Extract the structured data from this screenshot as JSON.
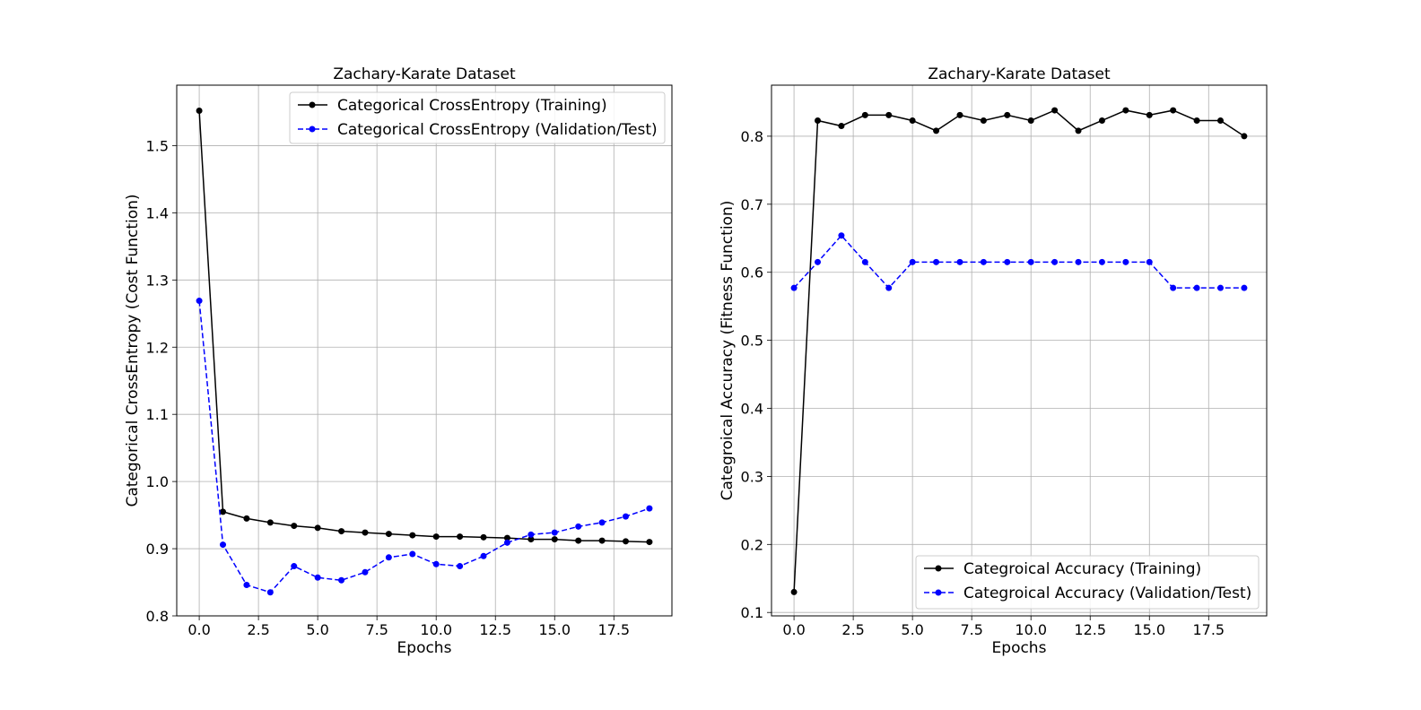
{
  "chart_data": [
    {
      "type": "line",
      "title": "Zachary-Karate Dataset",
      "xlabel": "Epochs",
      "ylabel": "Categorical CrossEntropy (Cost Function)",
      "xlim": [
        -0.95,
        19.95
      ],
      "ylim": [
        0.8,
        1.59
      ],
      "xticks": [
        0.0,
        2.5,
        5.0,
        7.5,
        10.0,
        12.5,
        15.0,
        17.5
      ],
      "xtick_labels": [
        "0.0",
        "2.5",
        "5.0",
        "7.5",
        "10.0",
        "12.5",
        "15.0",
        "17.5"
      ],
      "yticks": [
        0.8,
        0.9,
        1.0,
        1.1,
        1.2,
        1.3,
        1.4,
        1.5
      ],
      "ytick_labels": [
        "0.8",
        "0.9",
        "1.0",
        "1.1",
        "1.2",
        "1.3",
        "1.4",
        "1.5"
      ],
      "grid": true,
      "legend_position": "top-right",
      "x": [
        0,
        1,
        2,
        3,
        4,
        5,
        6,
        7,
        8,
        9,
        10,
        11,
        12,
        13,
        14,
        15,
        16,
        17,
        18,
        19
      ],
      "series": [
        {
          "name": "Categorical CrossEntropy (Training)",
          "color": "#000000",
          "style": "solid",
          "values": [
            1.552,
            0.955,
            0.945,
            0.939,
            0.934,
            0.931,
            0.926,
            0.924,
            0.922,
            0.92,
            0.918,
            0.918,
            0.917,
            0.916,
            0.914,
            0.914,
            0.912,
            0.912,
            0.911,
            0.91
          ]
        },
        {
          "name": "Categorical CrossEntropy (Validation/Test)",
          "color": "#0000ff",
          "style": "dashed",
          "values": [
            1.269,
            0.906,
            0.846,
            0.835,
            0.874,
            0.857,
            0.853,
            0.865,
            0.887,
            0.892,
            0.877,
            0.874,
            0.889,
            0.909,
            0.921,
            0.924,
            0.933,
            0.939,
            0.948,
            0.96
          ]
        }
      ]
    },
    {
      "type": "line",
      "title": "Zachary-Karate Dataset",
      "xlabel": "Epochs",
      "ylabel": "Categroical Accuracy (Fitness Function)",
      "xlim": [
        -0.95,
        19.95
      ],
      "ylim": [
        0.095,
        0.875
      ],
      "xticks": [
        0.0,
        2.5,
        5.0,
        7.5,
        10.0,
        12.5,
        15.0,
        17.5
      ],
      "xtick_labels": [
        "0.0",
        "2.5",
        "5.0",
        "7.5",
        "10.0",
        "12.5",
        "15.0",
        "17.5"
      ],
      "yticks": [
        0.1,
        0.2,
        0.3,
        0.4,
        0.5,
        0.6,
        0.7,
        0.8
      ],
      "ytick_labels": [
        "0.1",
        "0.2",
        "0.3",
        "0.4",
        "0.5",
        "0.6",
        "0.7",
        "0.8"
      ],
      "grid": true,
      "legend_position": "bottom-right",
      "x": [
        0,
        1,
        2,
        3,
        4,
        5,
        6,
        7,
        8,
        9,
        10,
        11,
        12,
        13,
        14,
        15,
        16,
        17,
        18,
        19
      ],
      "series": [
        {
          "name": "Categroical Accuracy (Training)",
          "color": "#000000",
          "style": "solid",
          "values": [
            0.13,
            0.823,
            0.815,
            0.831,
            0.831,
            0.823,
            0.808,
            0.831,
            0.823,
            0.831,
            0.823,
            0.838,
            0.808,
            0.823,
            0.838,
            0.831,
            0.838,
            0.823,
            0.823,
            0.8
          ]
        },
        {
          "name": "Categroical Accuracy (Validation/Test)",
          "color": "#0000ff",
          "style": "dashed",
          "values": [
            0.577,
            0.615,
            0.654,
            0.615,
            0.577,
            0.615,
            0.615,
            0.615,
            0.615,
            0.615,
            0.615,
            0.615,
            0.615,
            0.615,
            0.615,
            0.615,
            0.577,
            0.577,
            0.577,
            0.577
          ]
        }
      ]
    }
  ]
}
